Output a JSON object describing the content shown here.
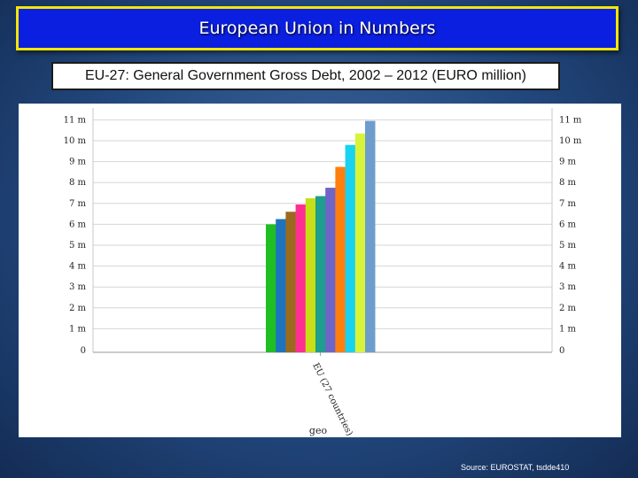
{
  "header": {
    "title": "European Union in Numbers"
  },
  "subtitle": "EU-27: General Government Gross Debt, 2002 – 2012 (EURO million)",
  "source": "Source: EUROSTAT, tsdde410",
  "chart_data": {
    "type": "bar",
    "categories": [
      "EU (27 countries)"
    ],
    "series": [
      {
        "values": [
          6.0
        ],
        "color": "#1fbf24"
      },
      {
        "values": [
          6.25
        ],
        "color": "#1e73be"
      },
      {
        "values": [
          6.6
        ],
        "color": "#9a6a1e"
      },
      {
        "values": [
          6.95
        ],
        "color": "#ff2f92"
      },
      {
        "values": [
          7.25
        ],
        "color": "#c7df16"
      },
      {
        "values": [
          7.35
        ],
        "color": "#1e9e8c"
      },
      {
        "values": [
          7.75
        ],
        "color": "#6f64c8"
      },
      {
        "values": [
          8.75
        ],
        "color": "#ff7f0e"
      },
      {
        "values": [
          9.8
        ],
        "color": "#18d2f0"
      },
      {
        "values": [
          10.35
        ],
        "color": "#d9f33a"
      },
      {
        "values": [
          10.95
        ],
        "color": "#6c9dcd"
      }
    ],
    "yticks": [
      "0",
      "1 m",
      "2 m",
      "3 m",
      "4 m",
      "5 m",
      "6 m",
      "7 m",
      "8 m",
      "9 m",
      "10 m",
      "11 m"
    ],
    "xlabel": "geo",
    "ylim": [
      0,
      11
    ],
    "grid": true,
    "legend": "none"
  }
}
